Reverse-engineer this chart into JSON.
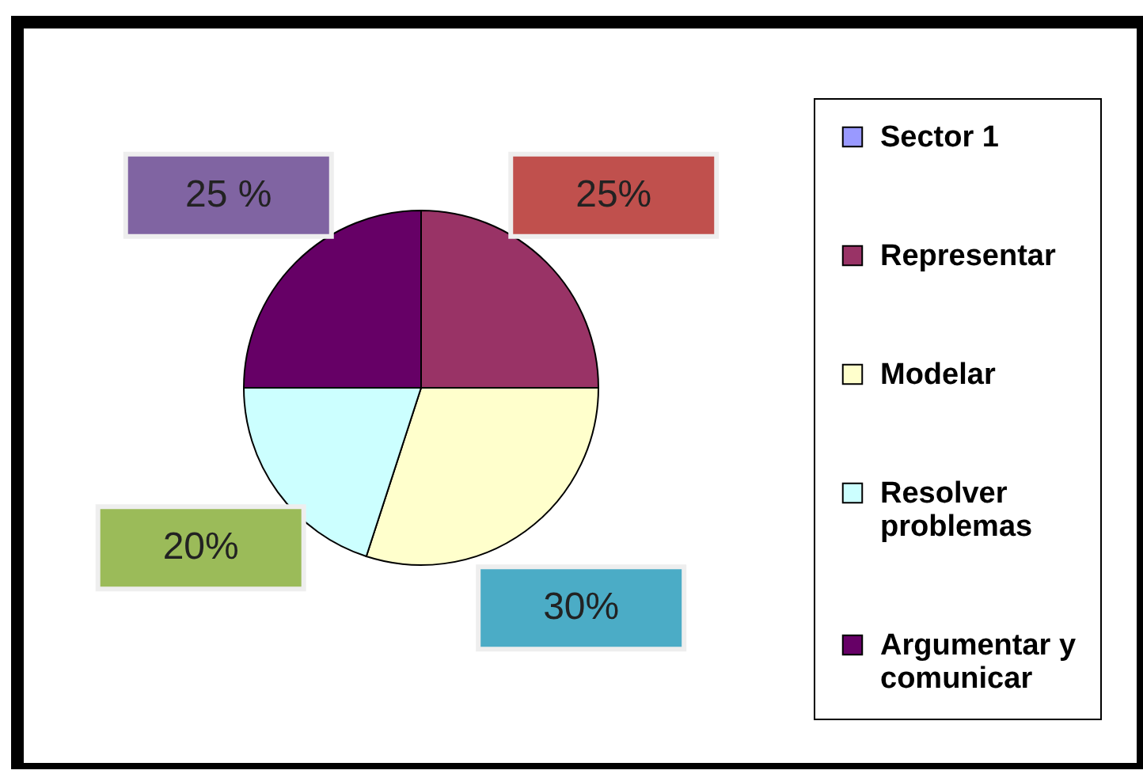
{
  "chart_data": {
    "type": "pie",
    "categories": [
      "Sector 1",
      "Representar",
      "Modelar",
      "Resolver problemas",
      "Argumentar y comunicar"
    ],
    "values": [
      0,
      25,
      30,
      20,
      25
    ],
    "colors": [
      "#9999ff",
      "#993366",
      "#ffffcc",
      "#ccffff",
      "#660066"
    ],
    "value_labels": [
      null,
      "25%",
      "30%",
      "20%",
      "25 %"
    ],
    "legend": "right"
  }
}
